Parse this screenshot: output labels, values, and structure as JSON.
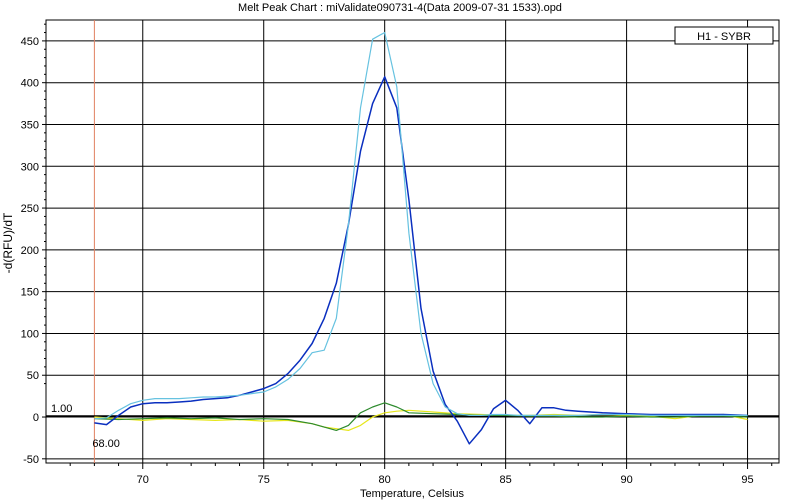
{
  "chart_data": {
    "type": "line",
    "title": "Melt Peak Chart : miValidate090731-4(Data 2009-07-31 1533).opd",
    "xlabel": "Temperature, Celsius",
    "ylabel": "-d(RFU)/dT",
    "xlim": [
      66.0,
      96.3
    ],
    "ylim": [
      -55,
      475
    ],
    "xticks": [
      70,
      75,
      80,
      85,
      90,
      95
    ],
    "yticks": [
      -50,
      0,
      50,
      100,
      150,
      200,
      250,
      300,
      350,
      400,
      450
    ],
    "grid": true,
    "legend": {
      "position": "top-right",
      "label": "H1 - SYBR"
    },
    "threshold": {
      "value": 1.0,
      "label": "1.00"
    },
    "marker_line": {
      "x": 68.0,
      "label": "68.00",
      "color": "#e08060"
    },
    "series": [
      {
        "color": "#66c2e0",
        "x": [
          68.0,
          68.5,
          69.0,
          69.5,
          70.0,
          70.5,
          71.0,
          71.5,
          72.0,
          72.5,
          73.0,
          73.5,
          74.0,
          74.5,
          75.0,
          75.5,
          76.0,
          76.5,
          77.0,
          77.5,
          78.0,
          78.5,
          79.0,
          79.5,
          80.0,
          80.5,
          81.0,
          81.5,
          82.0,
          82.5,
          83.0,
          83.5,
          84.0,
          84.5,
          85.0,
          85.5,
          86.0,
          86.5,
          87.0,
          87.5,
          88.0,
          89.0,
          90.0,
          91.0,
          92.0,
          93.0,
          94.0,
          95.0
        ],
        "y": [
          -2,
          -1,
          8,
          16,
          20,
          22,
          22,
          22,
          23,
          24,
          24,
          25,
          26,
          28,
          30,
          36,
          45,
          58,
          77,
          80,
          118,
          230,
          370,
          452,
          460,
          395,
          220,
          100,
          40,
          12,
          4,
          2,
          2,
          3,
          3,
          2,
          2,
          2,
          2,
          2,
          2,
          3,
          3,
          2,
          2,
          2,
          2,
          2
        ]
      },
      {
        "color": "#0a2fbf",
        "x": [
          68.0,
          68.5,
          69.0,
          69.5,
          70.0,
          70.5,
          71.0,
          71.5,
          72.0,
          72.5,
          73.0,
          73.5,
          74.0,
          74.5,
          75.0,
          75.5,
          76.0,
          76.5,
          77.0,
          77.5,
          78.0,
          78.5,
          79.0,
          79.5,
          80.0,
          80.5,
          81.0,
          81.5,
          82.0,
          82.5,
          83.0,
          83.5,
          84.0,
          84.5,
          85.0,
          85.5,
          86.0,
          86.5,
          87.0,
          87.5,
          88.0,
          89.0,
          90.0,
          91.0,
          92.0,
          93.0,
          94.0,
          95.0
        ],
        "y": [
          -7,
          -9,
          2,
          12,
          16,
          17,
          17,
          18,
          19,
          21,
          22,
          23,
          26,
          30,
          34,
          40,
          52,
          68,
          88,
          118,
          160,
          230,
          318,
          375,
          407,
          370,
          260,
          130,
          55,
          15,
          -5,
          -32,
          -15,
          10,
          20,
          8,
          -8,
          11,
          11,
          8,
          7,
          5,
          4,
          3,
          3,
          3,
          3,
          2
        ]
      },
      {
        "color": "#2e8b2e",
        "x": [
          68.0,
          69.0,
          70.0,
          71.0,
          72.0,
          73.0,
          74.0,
          75.0,
          76.0,
          77.0,
          77.5,
          78.0,
          78.5,
          79.0,
          79.5,
          80.0,
          80.5,
          81.0,
          82.0,
          83.0,
          84.0,
          85.0,
          86.0,
          87.0,
          88.0,
          89.0,
          90.0,
          91.0,
          92.0,
          93.0,
          94.0,
          95.0
        ],
        "y": [
          -2,
          -3,
          -2,
          -1,
          -2,
          -1,
          -3,
          -2,
          -3,
          -8,
          -12,
          -16,
          -10,
          5,
          12,
          17,
          12,
          5,
          4,
          3,
          2,
          2,
          1,
          1,
          0,
          0,
          1,
          0,
          0,
          1,
          1,
          0
        ]
      },
      {
        "color": "#e6e61a",
        "x": [
          68.0,
          69.0,
          70.0,
          71.0,
          72.0,
          73.0,
          74.0,
          75.0,
          76.0,
          77.0,
          77.5,
          78.0,
          78.5,
          79.0,
          79.5,
          80.0,
          80.5,
          81.0,
          82.0,
          83.0,
          84.0,
          85.0,
          86.0,
          87.0,
          88.0,
          89.0,
          90.0,
          91.0,
          92.0,
          93.0,
          94.0,
          95.0
        ],
        "y": [
          0,
          -2,
          -4,
          -2,
          -3,
          -4,
          -3,
          -5,
          -4,
          -8,
          -12,
          -14,
          -16,
          -10,
          0,
          5,
          7,
          8,
          6,
          4,
          3,
          2,
          2,
          3,
          2,
          3,
          2,
          1,
          -2,
          2,
          3,
          -3
        ]
      }
    ]
  }
}
